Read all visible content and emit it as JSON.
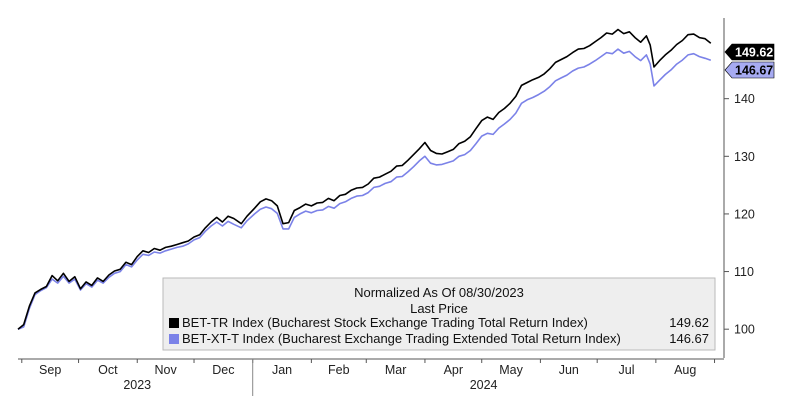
{
  "chart_data": {
    "type": "line",
    "title": "",
    "x_axis": {
      "months": [
        "Sep",
        "Oct",
        "Nov",
        "Dec",
        "Jan",
        "Feb",
        "Mar",
        "Apr",
        "May",
        "Jun",
        "Jul",
        "Aug"
      ],
      "years": [
        "2023",
        "2024"
      ]
    },
    "y_axis": {
      "ticks": [
        100,
        110,
        120,
        130,
        140
      ],
      "ylim": [
        95,
        154
      ]
    },
    "legend": {
      "title_line1": "Normalized As Of 08/30/2023",
      "title_line2": "Last Price",
      "placement": "bottom-right"
    },
    "series": [
      {
        "name": "BET-TR Index (Bucharest Stock Exchange Trading Total Return Index)",
        "last_value": "149.62",
        "color": "#000000",
        "points": [
          [
            "2023-08-30",
            100
          ],
          [
            "2023-09-02",
            100.8
          ],
          [
            "2023-09-05",
            104.0
          ],
          [
            "2023-09-08",
            106.3
          ],
          [
            "2023-09-11",
            106.9
          ],
          [
            "2023-09-14",
            107.4
          ],
          [
            "2023-09-17",
            109.3
          ],
          [
            "2023-09-20",
            108.4
          ],
          [
            "2023-09-23",
            109.7
          ],
          [
            "2023-09-26",
            108.3
          ],
          [
            "2023-09-29",
            109.1
          ],
          [
            "2023-10-02",
            107.0
          ],
          [
            "2023-10-05",
            108.2
          ],
          [
            "2023-10-08",
            107.6
          ],
          [
            "2023-10-11",
            108.9
          ],
          [
            "2023-10-14",
            108.3
          ],
          [
            "2023-10-17",
            109.4
          ],
          [
            "2023-10-20",
            110.1
          ],
          [
            "2023-10-23",
            110.4
          ],
          [
            "2023-10-26",
            111.6
          ],
          [
            "2023-10-29",
            111.2
          ],
          [
            "2023-11-01",
            112.6
          ],
          [
            "2023-11-04",
            113.6
          ],
          [
            "2023-11-07",
            113.3
          ],
          [
            "2023-11-10",
            114.0
          ],
          [
            "2023-11-13",
            113.7
          ],
          [
            "2023-11-16",
            114.2
          ],
          [
            "2023-11-19",
            114.4
          ],
          [
            "2023-11-22",
            114.7
          ],
          [
            "2023-11-25",
            115.0
          ],
          [
            "2023-11-28",
            115.3
          ],
          [
            "2023-12-01",
            116.0
          ],
          [
            "2023-12-04",
            116.4
          ],
          [
            "2023-12-07",
            117.6
          ],
          [
            "2023-12-10",
            118.6
          ],
          [
            "2023-12-13",
            119.4
          ],
          [
            "2023-12-16",
            118.6
          ],
          [
            "2023-12-19",
            119.6
          ],
          [
            "2023-12-22",
            119.2
          ],
          [
            "2023-12-26",
            118.3
          ],
          [
            "2023-12-29",
            119.6
          ],
          [
            "2024-01-02",
            121.0
          ],
          [
            "2024-01-05",
            122.1
          ],
          [
            "2024-01-08",
            122.6
          ],
          [
            "2024-01-11",
            122.3
          ],
          [
            "2024-01-14",
            121.4
          ],
          [
            "2024-01-17",
            118.3
          ],
          [
            "2024-01-20",
            118.5
          ],
          [
            "2024-01-23",
            120.6
          ],
          [
            "2024-01-26",
            121.1
          ],
          [
            "2024-01-29",
            121.7
          ],
          [
            "2024-02-01",
            121.4
          ],
          [
            "2024-02-04",
            121.9
          ],
          [
            "2024-02-07",
            122.0
          ],
          [
            "2024-02-10",
            122.7
          ],
          [
            "2024-02-13",
            122.3
          ],
          [
            "2024-02-16",
            123.2
          ],
          [
            "2024-02-19",
            123.4
          ],
          [
            "2024-02-22",
            124.1
          ],
          [
            "2024-02-25",
            124.5
          ],
          [
            "2024-02-28",
            124.6
          ],
          [
            "2024-03-02",
            125.2
          ],
          [
            "2024-03-05",
            126.2
          ],
          [
            "2024-03-08",
            126.4
          ],
          [
            "2024-03-11",
            126.9
          ],
          [
            "2024-03-14",
            127.4
          ],
          [
            "2024-03-17",
            128.3
          ],
          [
            "2024-03-20",
            128.4
          ],
          [
            "2024-03-23",
            129.3
          ],
          [
            "2024-03-26",
            130.3
          ],
          [
            "2024-03-29",
            131.3
          ],
          [
            "2024-04-01",
            132.4
          ],
          [
            "2024-04-04",
            131.0
          ],
          [
            "2024-04-07",
            130.5
          ],
          [
            "2024-04-10",
            130.4
          ],
          [
            "2024-04-13",
            130.8
          ],
          [
            "2024-04-16",
            131.2
          ],
          [
            "2024-04-19",
            132.2
          ],
          [
            "2024-04-22",
            132.6
          ],
          [
            "2024-04-25",
            133.4
          ],
          [
            "2024-04-28",
            134.8
          ],
          [
            "2024-05-01",
            136.2
          ],
          [
            "2024-05-04",
            136.8
          ],
          [
            "2024-05-07",
            136.4
          ],
          [
            "2024-05-10",
            137.6
          ],
          [
            "2024-05-13",
            138.3
          ],
          [
            "2024-05-16",
            139.2
          ],
          [
            "2024-05-19",
            140.4
          ],
          [
            "2024-05-22",
            142.3
          ],
          [
            "2024-05-25",
            142.8
          ],
          [
            "2024-05-28",
            143.3
          ],
          [
            "2024-05-31",
            143.7
          ],
          [
            "2024-06-03",
            144.3
          ],
          [
            "2024-06-06",
            145.2
          ],
          [
            "2024-06-09",
            146.3
          ],
          [
            "2024-06-12",
            146.8
          ],
          [
            "2024-06-15",
            147.3
          ],
          [
            "2024-06-18",
            148.0
          ],
          [
            "2024-06-21",
            148.6
          ],
          [
            "2024-06-24",
            148.7
          ],
          [
            "2024-06-27",
            149.2
          ],
          [
            "2024-06-30",
            149.9
          ],
          [
            "2024-07-03",
            150.6
          ],
          [
            "2024-07-06",
            151.4
          ],
          [
            "2024-07-09",
            151.2
          ],
          [
            "2024-07-12",
            152.0
          ],
          [
            "2024-07-15",
            151.3
          ],
          [
            "2024-07-18",
            151.6
          ],
          [
            "2024-07-21",
            150.6
          ],
          [
            "2024-07-24",
            149.8
          ],
          [
            "2024-07-27",
            150.9
          ],
          [
            "2024-07-29",
            149.3
          ],
          [
            "2024-07-31",
            145.5
          ],
          [
            "2024-08-03",
            146.6
          ],
          [
            "2024-08-06",
            147.6
          ],
          [
            "2024-08-09",
            148.4
          ],
          [
            "2024-08-12",
            149.4
          ],
          [
            "2024-08-15",
            150.1
          ],
          [
            "2024-08-18",
            151.1
          ],
          [
            "2024-08-21",
            151.2
          ],
          [
            "2024-08-24",
            150.6
          ],
          [
            "2024-08-27",
            150.4
          ],
          [
            "2024-08-30",
            149.62
          ]
        ]
      },
      {
        "name": "BET-XT-T Index (Bucharest Exchange Trading Extended Total Return Index)",
        "last_value": "146.67",
        "color": "#7b82e8",
        "points": [
          [
            "2023-08-30",
            100
          ],
          [
            "2023-09-02",
            100.4
          ],
          [
            "2023-09-05",
            103.6
          ],
          [
            "2023-09-08",
            106.0
          ],
          [
            "2023-09-11",
            106.7
          ],
          [
            "2023-09-14",
            107.2
          ],
          [
            "2023-09-17",
            108.7
          ],
          [
            "2023-09-20",
            108.0
          ],
          [
            "2023-09-23",
            109.2
          ],
          [
            "2023-09-26",
            108.0
          ],
          [
            "2023-09-29",
            108.7
          ],
          [
            "2023-10-02",
            106.8
          ],
          [
            "2023-10-05",
            107.9
          ],
          [
            "2023-10-08",
            107.3
          ],
          [
            "2023-10-11",
            108.5
          ],
          [
            "2023-10-14",
            108.0
          ],
          [
            "2023-10-17",
            109.0
          ],
          [
            "2023-10-20",
            109.7
          ],
          [
            "2023-10-23",
            110.0
          ],
          [
            "2023-10-26",
            111.2
          ],
          [
            "2023-10-29",
            110.8
          ],
          [
            "2023-11-01",
            112.0
          ],
          [
            "2023-11-04",
            113.0
          ],
          [
            "2023-11-07",
            112.8
          ],
          [
            "2023-11-10",
            113.4
          ],
          [
            "2023-11-13",
            113.2
          ],
          [
            "2023-11-16",
            113.6
          ],
          [
            "2023-11-19",
            113.9
          ],
          [
            "2023-11-22",
            114.2
          ],
          [
            "2023-11-25",
            114.4
          ],
          [
            "2023-11-28",
            114.8
          ],
          [
            "2023-12-01",
            115.5
          ],
          [
            "2023-12-04",
            115.9
          ],
          [
            "2023-12-07",
            117.0
          ],
          [
            "2023-12-10",
            117.9
          ],
          [
            "2023-12-13",
            118.6
          ],
          [
            "2023-12-16",
            117.9
          ],
          [
            "2023-12-19",
            118.7
          ],
          [
            "2023-12-22",
            118.2
          ],
          [
            "2023-12-26",
            117.6
          ],
          [
            "2023-12-29",
            118.8
          ],
          [
            "2024-01-02",
            120.0
          ],
          [
            "2024-01-05",
            120.8
          ],
          [
            "2024-01-08",
            121.2
          ],
          [
            "2024-01-11",
            120.9
          ],
          [
            "2024-01-14",
            120.1
          ],
          [
            "2024-01-17",
            117.4
          ],
          [
            "2024-01-20",
            117.4
          ],
          [
            "2024-01-23",
            119.4
          ],
          [
            "2024-01-26",
            120.0
          ],
          [
            "2024-01-29",
            120.5
          ],
          [
            "2024-02-01",
            120.2
          ],
          [
            "2024-02-04",
            120.6
          ],
          [
            "2024-02-07",
            120.7
          ],
          [
            "2024-02-10",
            121.3
          ],
          [
            "2024-02-13",
            121.0
          ],
          [
            "2024-02-16",
            121.8
          ],
          [
            "2024-02-19",
            122.1
          ],
          [
            "2024-02-22",
            122.7
          ],
          [
            "2024-02-25",
            123.1
          ],
          [
            "2024-02-28",
            123.2
          ],
          [
            "2024-03-02",
            123.7
          ],
          [
            "2024-03-05",
            124.6
          ],
          [
            "2024-03-08",
            124.8
          ],
          [
            "2024-03-11",
            125.3
          ],
          [
            "2024-03-14",
            125.6
          ],
          [
            "2024-03-17",
            126.4
          ],
          [
            "2024-03-20",
            126.5
          ],
          [
            "2024-03-23",
            127.3
          ],
          [
            "2024-03-26",
            128.2
          ],
          [
            "2024-03-29",
            129.2
          ],
          [
            "2024-04-01",
            130.0
          ],
          [
            "2024-04-04",
            128.8
          ],
          [
            "2024-04-07",
            128.5
          ],
          [
            "2024-04-10",
            128.6
          ],
          [
            "2024-04-13",
            128.9
          ],
          [
            "2024-04-16",
            129.2
          ],
          [
            "2024-04-19",
            130.0
          ],
          [
            "2024-04-22",
            130.3
          ],
          [
            "2024-04-25",
            131.0
          ],
          [
            "2024-04-28",
            132.2
          ],
          [
            "2024-05-01",
            133.5
          ],
          [
            "2024-05-04",
            134.0
          ],
          [
            "2024-05-07",
            133.8
          ],
          [
            "2024-05-10",
            134.9
          ],
          [
            "2024-05-13",
            135.6
          ],
          [
            "2024-05-16",
            136.4
          ],
          [
            "2024-05-19",
            137.5
          ],
          [
            "2024-05-22",
            139.2
          ],
          [
            "2024-05-25",
            139.8
          ],
          [
            "2024-05-28",
            140.2
          ],
          [
            "2024-05-31",
            140.7
          ],
          [
            "2024-06-03",
            141.3
          ],
          [
            "2024-06-06",
            142.1
          ],
          [
            "2024-06-09",
            143.1
          ],
          [
            "2024-06-12",
            143.6
          ],
          [
            "2024-06-15",
            144.1
          ],
          [
            "2024-06-18",
            144.8
          ],
          [
            "2024-06-21",
            145.3
          ],
          [
            "2024-06-24",
            145.5
          ],
          [
            "2024-06-27",
            146.0
          ],
          [
            "2024-06-30",
            146.6
          ],
          [
            "2024-07-03",
            147.3
          ],
          [
            "2024-07-06",
            148.0
          ],
          [
            "2024-07-09",
            147.8
          ],
          [
            "2024-07-12",
            148.6
          ],
          [
            "2024-07-15",
            147.9
          ],
          [
            "2024-07-18",
            148.2
          ],
          [
            "2024-07-21",
            147.3
          ],
          [
            "2024-07-24",
            146.6
          ],
          [
            "2024-07-27",
            147.6
          ],
          [
            "2024-07-29",
            146.0
          ],
          [
            "2024-07-31",
            142.2
          ],
          [
            "2024-08-03",
            143.2
          ],
          [
            "2024-08-06",
            144.2
          ],
          [
            "2024-08-09",
            145.0
          ],
          [
            "2024-08-12",
            146.0
          ],
          [
            "2024-08-15",
            146.7
          ],
          [
            "2024-08-18",
            147.6
          ],
          [
            "2024-08-21",
            147.8
          ],
          [
            "2024-08-24",
            147.3
          ],
          [
            "2024-08-27",
            147.0
          ],
          [
            "2024-08-30",
            146.67
          ]
        ]
      }
    ]
  }
}
